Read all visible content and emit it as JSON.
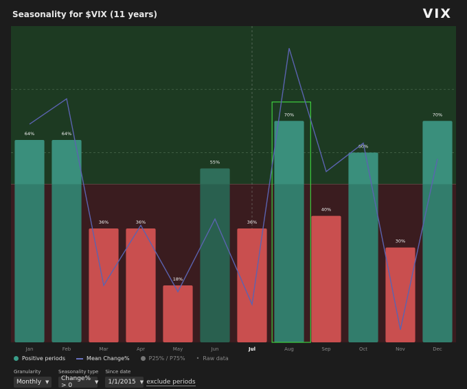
{
  "header": {
    "title": "Seasonality for $VIX (11 years)",
    "logo": "VIX"
  },
  "chart_data": {
    "type": "bar",
    "categories": [
      "Jan",
      "Feb",
      "Mar",
      "Apr",
      "May",
      "Jun",
      "Jul",
      "Aug",
      "Sep",
      "Oct",
      "Nov",
      "Dec"
    ],
    "highlighted_category": "Jul",
    "selected_category": "Aug",
    "series": [
      {
        "name": "Positive periods",
        "values": [
          64,
          64,
          36,
          36,
          18,
          55,
          36,
          70,
          40,
          60,
          30,
          70
        ],
        "labels": [
          "64%",
          "64%",
          "36%",
          "36%",
          "18%",
          "55%",
          "36%",
          "70%",
          "40%",
          "60%",
          "30%",
          "70%"
        ]
      },
      {
        "name": "Mean Change%",
        "values": [
          69,
          77,
          18,
          37,
          16,
          39,
          12,
          93,
          54,
          63,
          4,
          58
        ]
      }
    ],
    "ylim": [
      0,
      100
    ],
    "threshold": 50,
    "grid": true,
    "legend_position": "bottom-left",
    "colors": {
      "positive_bar": "#3a8f7c",
      "positive_bar_mid": "#2f6e5a",
      "negative_bar": "#c94f4f",
      "line": "#5b63b0",
      "bg_upper": "#1d3a22",
      "bg_lower": "#3a1c1f",
      "selection": "#3fcf3f"
    }
  },
  "legend": {
    "positive": "Positive periods",
    "mean": "Mean Change%",
    "pct": "P25% / P75%",
    "raw": "Raw data"
  },
  "controls": {
    "granularity": {
      "label": "Granularity",
      "value": "Monthly"
    },
    "seasonality_type": {
      "label": "Seasonality type",
      "value": "Change% > 0"
    },
    "since_date": {
      "label": "Since date",
      "value": "1/1/2015"
    },
    "exclude": "exclude periods"
  }
}
